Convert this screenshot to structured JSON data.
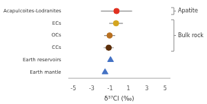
{
  "chart_data": {
    "type": "scatter",
    "x_label": "δ³⁷Cl (‰)",
    "categories": [
      "Acapulcoites-Lodranites",
      "ECs",
      "OCs",
      "CCs",
      "Earth reservoirs",
      "Earth mantle"
    ],
    "series": [
      {
        "name": "Apatite",
        "marker": "circle",
        "color": "#e03020",
        "values": [
          -0.3,
          null,
          null,
          null,
          null,
          null
        ],
        "error": [
          1.7,
          null,
          null,
          null,
          null,
          null
        ]
      },
      {
        "name": "Bulk rock",
        "marker": "circle",
        "colors": [
          null,
          "#d4a520",
          "#b87020",
          "#5c2e0a",
          null,
          null
        ],
        "values": [
          null,
          -0.35,
          -1.05,
          -1.15,
          null,
          null
        ],
        "error": [
          null,
          0.75,
          0.6,
          0.55,
          null,
          null
        ]
      },
      {
        "marker": "triangle",
        "color": "#4472c4",
        "values": [
          null,
          null,
          null,
          null,
          -0.95,
          -1.55
        ]
      }
    ],
    "xlim": [
      -5.5,
      5.5
    ],
    "xticks": [
      -5,
      -3,
      -1,
      1,
      3,
      5
    ],
    "grid": false
  }
}
